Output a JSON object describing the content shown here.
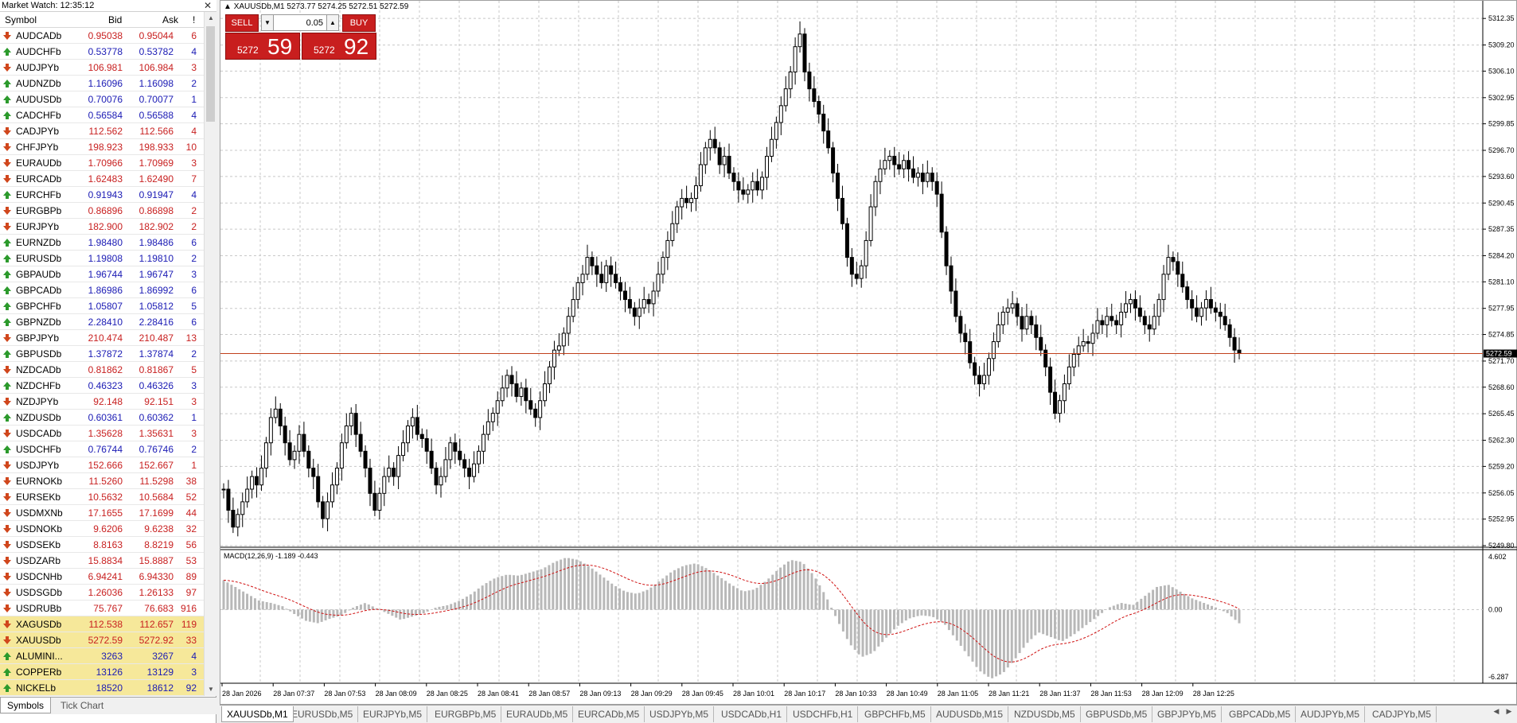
{
  "market_watch": {
    "title": "Market Watch: 12:35:12",
    "columns": {
      "symbol": "Symbol",
      "bid": "Bid",
      "ask": "Ask",
      "spread": "!"
    },
    "rows": [
      {
        "symbol": "AUDCADb",
        "bid": "0.95038",
        "ask": "0.95044",
        "spread": "6",
        "dir": "down",
        "color": "red"
      },
      {
        "symbol": "AUDCHFb",
        "bid": "0.53778",
        "ask": "0.53782",
        "spread": "4",
        "dir": "up",
        "color": "blue"
      },
      {
        "symbol": "AUDJPYb",
        "bid": "106.981",
        "ask": "106.984",
        "spread": "3",
        "dir": "down",
        "color": "red"
      },
      {
        "symbol": "AUDNZDb",
        "bid": "1.16096",
        "ask": "1.16098",
        "spread": "2",
        "dir": "up",
        "color": "blue"
      },
      {
        "symbol": "AUDUSDb",
        "bid": "0.70076",
        "ask": "0.70077",
        "spread": "1",
        "dir": "up",
        "color": "blue"
      },
      {
        "symbol": "CADCHFb",
        "bid": "0.56584",
        "ask": "0.56588",
        "spread": "4",
        "dir": "up",
        "color": "blue"
      },
      {
        "symbol": "CADJPYb",
        "bid": "112.562",
        "ask": "112.566",
        "spread": "4",
        "dir": "down",
        "color": "red"
      },
      {
        "symbol": "CHFJPYb",
        "bid": "198.923",
        "ask": "198.933",
        "spread": "10",
        "dir": "down",
        "color": "red"
      },
      {
        "symbol": "EURAUDb",
        "bid": "1.70966",
        "ask": "1.70969",
        "spread": "3",
        "dir": "down",
        "color": "red"
      },
      {
        "symbol": "EURCADb",
        "bid": "1.62483",
        "ask": "1.62490",
        "spread": "7",
        "dir": "down",
        "color": "red"
      },
      {
        "symbol": "EURCHFb",
        "bid": "0.91943",
        "ask": "0.91947",
        "spread": "4",
        "dir": "up",
        "color": "blue"
      },
      {
        "symbol": "EURGBPb",
        "bid": "0.86896",
        "ask": "0.86898",
        "spread": "2",
        "dir": "down",
        "color": "red"
      },
      {
        "symbol": "EURJPYb",
        "bid": "182.900",
        "ask": "182.902",
        "spread": "2",
        "dir": "down",
        "color": "red"
      },
      {
        "symbol": "EURNZDb",
        "bid": "1.98480",
        "ask": "1.98486",
        "spread": "6",
        "dir": "up",
        "color": "blue"
      },
      {
        "symbol": "EURUSDb",
        "bid": "1.19808",
        "ask": "1.19810",
        "spread": "2",
        "dir": "up",
        "color": "blue"
      },
      {
        "symbol": "GBPAUDb",
        "bid": "1.96744",
        "ask": "1.96747",
        "spread": "3",
        "dir": "up",
        "color": "blue"
      },
      {
        "symbol": "GBPCADb",
        "bid": "1.86986",
        "ask": "1.86992",
        "spread": "6",
        "dir": "up",
        "color": "blue"
      },
      {
        "symbol": "GBPCHFb",
        "bid": "1.05807",
        "ask": "1.05812",
        "spread": "5",
        "dir": "up",
        "color": "blue"
      },
      {
        "symbol": "GBPNZDb",
        "bid": "2.28410",
        "ask": "2.28416",
        "spread": "6",
        "dir": "up",
        "color": "blue"
      },
      {
        "symbol": "GBPJPYb",
        "bid": "210.474",
        "ask": "210.487",
        "spread": "13",
        "dir": "down",
        "color": "red"
      },
      {
        "symbol": "GBPUSDb",
        "bid": "1.37872",
        "ask": "1.37874",
        "spread": "2",
        "dir": "up",
        "color": "blue"
      },
      {
        "symbol": "NZDCADb",
        "bid": "0.81862",
        "ask": "0.81867",
        "spread": "5",
        "dir": "down",
        "color": "red"
      },
      {
        "symbol": "NZDCHFb",
        "bid": "0.46323",
        "ask": "0.46326",
        "spread": "3",
        "dir": "up",
        "color": "blue"
      },
      {
        "symbol": "NZDJPYb",
        "bid": "92.148",
        "ask": "92.151",
        "spread": "3",
        "dir": "down",
        "color": "red"
      },
      {
        "symbol": "NZDUSDb",
        "bid": "0.60361",
        "ask": "0.60362",
        "spread": "1",
        "dir": "up",
        "color": "blue"
      },
      {
        "symbol": "USDCADb",
        "bid": "1.35628",
        "ask": "1.35631",
        "spread": "3",
        "dir": "down",
        "color": "red"
      },
      {
        "symbol": "USDCHFb",
        "bid": "0.76744",
        "ask": "0.76746",
        "spread": "2",
        "dir": "up",
        "color": "blue"
      },
      {
        "symbol": "USDJPYb",
        "bid": "152.666",
        "ask": "152.667",
        "spread": "1",
        "dir": "down",
        "color": "red"
      },
      {
        "symbol": "EURNOKb",
        "bid": "11.5260",
        "ask": "11.5298",
        "spread": "38",
        "dir": "down",
        "color": "red"
      },
      {
        "symbol": "EURSEKb",
        "bid": "10.5632",
        "ask": "10.5684",
        "spread": "52",
        "dir": "down",
        "color": "red"
      },
      {
        "symbol": "USDMXNb",
        "bid": "17.1655",
        "ask": "17.1699",
        "spread": "44",
        "dir": "down",
        "color": "red"
      },
      {
        "symbol": "USDNOKb",
        "bid": "9.6206",
        "ask": "9.6238",
        "spread": "32",
        "dir": "down",
        "color": "red"
      },
      {
        "symbol": "USDSEKb",
        "bid": "8.8163",
        "ask": "8.8219",
        "spread": "56",
        "dir": "down",
        "color": "red"
      },
      {
        "symbol": "USDZARb",
        "bid": "15.8834",
        "ask": "15.8887",
        "spread": "53",
        "dir": "down",
        "color": "red"
      },
      {
        "symbol": "USDCNHb",
        "bid": "6.94241",
        "ask": "6.94330",
        "spread": "89",
        "dir": "down",
        "color": "red"
      },
      {
        "symbol": "USDSGDb",
        "bid": "1.26036",
        "ask": "1.26133",
        "spread": "97",
        "dir": "down",
        "color": "red"
      },
      {
        "symbol": "USDRUBb",
        "bid": "75.767",
        "ask": "76.683",
        "spread": "916",
        "dir": "down",
        "color": "red"
      },
      {
        "symbol": "XAGUSDb",
        "bid": "112.538",
        "ask": "112.657",
        "spread": "119",
        "dir": "down",
        "color": "red",
        "highlight": true
      },
      {
        "symbol": "XAUUSDb",
        "bid": "5272.59",
        "ask": "5272.92",
        "spread": "33",
        "dir": "down",
        "color": "red",
        "highlight": true
      },
      {
        "symbol": "ALUMINI...",
        "bid": "3263",
        "ask": "3267",
        "spread": "4",
        "dir": "up",
        "color": "blue",
        "highlight": true
      },
      {
        "symbol": "COPPERb",
        "bid": "13126",
        "ask": "13129",
        "spread": "3",
        "dir": "up",
        "color": "blue",
        "highlight": true
      },
      {
        "symbol": "NICKELb",
        "bid": "18520",
        "ask": "18612",
        "spread": "92",
        "dir": "up",
        "color": "blue",
        "highlight": true
      }
    ],
    "tabs": [
      "Symbols",
      "Tick Chart"
    ]
  },
  "chart": {
    "info": "XAUUSDb,M1  5273.77 5274.25 5272.51 5272.59",
    "one_click": {
      "sell_label": "SELL",
      "buy_label": "BUY",
      "lot": "0.05",
      "sell_price_small": "5272",
      "sell_price_large": "59",
      "buy_price_small": "5272",
      "buy_price_large": "92"
    },
    "price_axis_labels": [
      "5312.35",
      "5309.20",
      "5306.10",
      "5302.95",
      "5299.85",
      "5296.70",
      "5293.60",
      "5290.45",
      "5287.35",
      "5284.20",
      "5281.10",
      "5277.95",
      "5274.85",
      "5271.70",
      "5268.60",
      "5265.45",
      "5262.30",
      "5259.20",
      "5256.05",
      "5252.95",
      "5249.80"
    ],
    "current_price_label": "5272.59",
    "macd_label": "MACD(12,26,9) -1.189 -0.443",
    "macd_axis_labels": [
      "4.602",
      "0.00",
      "-6.287"
    ],
    "time_axis_labels": [
      "28 Jan 2026",
      "28 Jan 07:37",
      "28 Jan 07:53",
      "28 Jan 08:09",
      "28 Jan 08:25",
      "28 Jan 08:41",
      "28 Jan 08:57",
      "28 Jan 09:13",
      "28 Jan 09:29",
      "28 Jan 09:45",
      "28 Jan 10:01",
      "28 Jan 10:17",
      "28 Jan 10:33",
      "28 Jan 10:49",
      "28 Jan 11:05",
      "28 Jan 11:21",
      "28 Jan 11:37",
      "28 Jan 11:53",
      "28 Jan 12:09",
      "28 Jan 12:25"
    ],
    "colors": {
      "bid_line": "#c0401c",
      "signal": "#d01010",
      "histogram": "#b8b8b8",
      "grid": "#c8c8c8"
    }
  },
  "chart_data": {
    "type": "line",
    "title": "",
    "xlabel": "",
    "ylabel": "",
    "ylim": [
      5249.8,
      5313.5
    ],
    "current_price": 5272.59,
    "series": [
      {
        "values": [
          5256.5,
          5254,
          5252,
          5253.5,
          5255,
          5256.5,
          5258,
          5257,
          5259,
          5262,
          5265,
          5266,
          5264,
          5262,
          5260,
          5261,
          5263,
          5261,
          5259,
          5258,
          5255,
          5253,
          5255,
          5257,
          5259,
          5262,
          5264,
          5265.5,
          5263,
          5261,
          5259,
          5256,
          5254,
          5256,
          5258,
          5259,
          5258,
          5260.5,
          5262,
          5264,
          5265,
          5263,
          5262.5,
          5261,
          5259,
          5257,
          5258,
          5260,
          5262,
          5261,
          5260,
          5259,
          5258,
          5259.5,
          5261,
          5263,
          5264.5,
          5265.5,
          5267,
          5268.5,
          5270,
          5269,
          5267.5,
          5268.5,
          5267,
          5266,
          5265,
          5267,
          5269,
          5271,
          5273,
          5273.5,
          5275,
          5277,
          5279,
          5281,
          5282,
          5284,
          5283,
          5282,
          5281,
          5283,
          5282,
          5281,
          5280,
          5279,
          5278,
          5277,
          5278,
          5279,
          5278.5,
          5280,
          5282,
          5284,
          5286,
          5288,
          5290,
          5291,
          5290.5,
          5291,
          5292.5,
          5295,
          5297,
          5298,
          5297,
          5295,
          5296,
          5294,
          5293,
          5292,
          5291.5,
          5292,
          5293,
          5292,
          5293.5,
          5296,
          5298,
          5300,
          5302,
          5304,
          5306,
          5309,
          5310.5,
          5306,
          5304,
          5302.5,
          5301,
          5299,
          5297,
          5294,
          5291,
          5288,
          5284,
          5282,
          5281.5,
          5283,
          5286,
          5290,
          5293,
          5294.5,
          5295.5,
          5296,
          5295,
          5294.5,
          5295.5,
          5294.5,
          5293.5,
          5294,
          5293,
          5294,
          5293,
          5291.5,
          5287,
          5283,
          5280,
          5277,
          5275,
          5274,
          5271.5,
          5270,
          5269,
          5270,
          5272,
          5274,
          5276,
          5277.5,
          5278,
          5278.5,
          5277,
          5275.5,
          5277,
          5276,
          5274.5,
          5273,
          5271,
          5268,
          5265.5,
          5267,
          5269,
          5271,
          5272.5,
          5273.5,
          5274,
          5273.8,
          5275,
          5276.5,
          5276,
          5277,
          5276.5,
          5276,
          5277.5,
          5278.5,
          5279,
          5278,
          5277,
          5276,
          5275.5,
          5277,
          5279,
          5282,
          5284,
          5283.5,
          5282,
          5280.5,
          5279,
          5278,
          5277,
          5278,
          5279,
          5278,
          5277.5,
          5277,
          5276,
          5274.5,
          5273,
          5272.59
        ]
      },
      {
        "name": "MACD(12,26,9)",
        "values": [
          2.6,
          2.0,
          1.4,
          0.8,
          0.6,
          0.3,
          -0.4,
          -1.0,
          -1.2,
          -0.8,
          -0.5,
          0.2,
          0.6,
          0.1,
          -0.4,
          -0.9,
          -0.6,
          -0.3,
          0.2,
          0.4,
          0.8,
          1.4,
          2.2,
          2.8,
          3.1,
          3.0,
          3.3,
          3.6,
          4.2,
          4.6,
          4.4,
          3.8,
          3.0,
          2.2,
          1.6,
          1.4,
          1.8,
          2.6,
          3.4,
          3.9,
          4.1,
          3.6,
          2.9,
          2.2,
          1.6,
          1.8,
          2.6,
          3.6,
          4.4,
          4.2,
          3.0,
          1.2,
          -1.0,
          -3.0,
          -4.2,
          -3.8,
          -2.6,
          -1.5,
          -0.8,
          -0.5,
          -0.6,
          -1.2,
          -2.6,
          -4.0,
          -5.4,
          -6.1,
          -5.6,
          -4.4,
          -3.0,
          -2.0,
          -2.4,
          -2.8,
          -2.2,
          -1.4,
          -0.6,
          0.2,
          0.6,
          0.4,
          1.2,
          2.0,
          2.2,
          1.6,
          1.0,
          0.6,
          0.2,
          -0.3,
          -1.2
        ]
      }
    ]
  },
  "chart_tabs": [
    "XAUUSDb,M1",
    "EURUSDb,M5",
    "EURJPYb,M5",
    "EURGBPb,M5",
    "EURAUDb,M5",
    "EURCADb,M5",
    "USDJPYb,M5",
    "USDCADb,H1",
    "USDCHFb,H1",
    "GBPCHFb,M5",
    "AUDUSDb,M15",
    "NZDUSDb,M5",
    "GBPUSDb,M5",
    "GBPJPYb,M5",
    "GBPCADb,M5",
    "AUDJPYb,M5",
    "CADJPYb,M5"
  ]
}
